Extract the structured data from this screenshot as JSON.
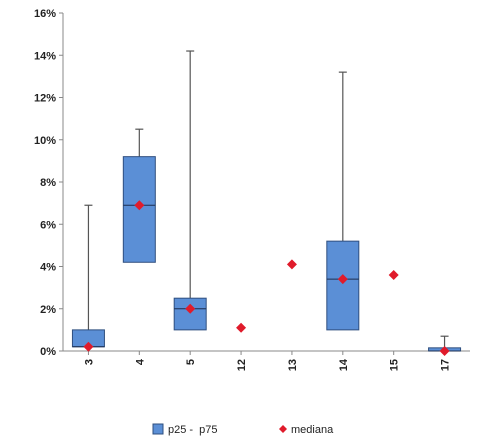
{
  "chart_data": {
    "type": "box",
    "categories": [
      "3",
      "4",
      "5",
      "12",
      "13",
      "14",
      "15",
      "17"
    ],
    "series": [
      {
        "name": "p25 -  p75",
        "p25": [
          0.2,
          4.2,
          1.0,
          null,
          null,
          1.0,
          null,
          0.0
        ],
        "p75": [
          1.0,
          9.2,
          2.5,
          null,
          null,
          5.2,
          null,
          0.15
        ],
        "min": [
          0.2,
          4.2,
          1.0,
          null,
          null,
          1.0,
          null,
          0.0
        ],
        "max": [
          6.9,
          10.5,
          14.2,
          null,
          null,
          13.2,
          null,
          0.7
        ]
      },
      {
        "name": "mediana",
        "values": [
          0.2,
          6.9,
          2.0,
          1.1,
          4.1,
          3.4,
          3.6,
          0.0
        ]
      }
    ],
    "yticks": [
      "0%",
      "2%",
      "4%",
      "6%",
      "8%",
      "10%",
      "12%",
      "14%",
      "16%"
    ],
    "ylim": [
      0,
      16
    ],
    "grid": false,
    "legend_position": "bottom",
    "colors": {
      "box": "#5b8fd6",
      "box_stroke": "#2f4f7f",
      "median": "#e01b2b",
      "whisker": "#555555",
      "axis": "#888888"
    }
  }
}
